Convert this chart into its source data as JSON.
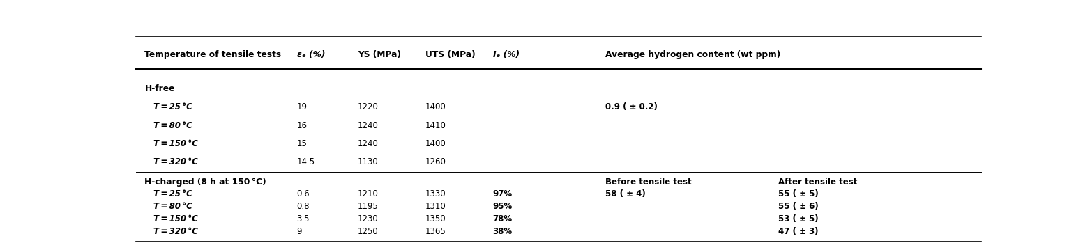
{
  "figsize": [
    15.63,
    3.62
  ],
  "dpi": 100,
  "header": {
    "col1": "Temperature of tensile tests",
    "col2": "εₑ (%)",
    "col3": "YS (MPa)",
    "col4": "UTS (MPa)",
    "col5": "Iₑ (%)",
    "col6": "Average hydrogen content (wt ppm)"
  },
  "section1_label": "H-free",
  "section1_rows": [
    {
      "temp": "T = 25 °C",
      "ef": "19",
      "ys": "1220",
      "uts": "1400",
      "ie": "",
      "h_before": "0.9 ( ± 0.2)",
      "h_after": ""
    },
    {
      "temp": "T = 80 °C",
      "ef": "16",
      "ys": "1240",
      "uts": "1410",
      "ie": "",
      "h_before": "",
      "h_after": ""
    },
    {
      "temp": "T = 150 °C",
      "ef": "15",
      "ys": "1240",
      "uts": "1400",
      "ie": "",
      "h_before": "",
      "h_after": ""
    },
    {
      "temp": "T = 320 °C",
      "ef": "14.5",
      "ys": "1130",
      "uts": "1260",
      "ie": "",
      "h_before": "",
      "h_after": ""
    }
  ],
  "section2_label": "H-charged (8 h at 150 °C)",
  "section2_subheader": {
    "h_before": "Before tensile test",
    "h_after": "After tensile test"
  },
  "section2_rows": [
    {
      "temp": "T = 25 °C",
      "ef": "0.6",
      "ys": "1210",
      "uts": "1330",
      "ie": "97%",
      "h_before": "58 ( ± 4)",
      "h_after": "55 ( ± 5)"
    },
    {
      "temp": "T = 80 °C",
      "ef": "0.8",
      "ys": "1195",
      "uts": "1310",
      "ie": "95%",
      "h_before": "",
      "h_after": "55 ( ± 6)"
    },
    {
      "temp": "T = 150 °C",
      "ef": "3.5",
      "ys": "1230",
      "uts": "1350",
      "ie": "78%",
      "h_before": "",
      "h_after": "53 ( ± 5)"
    },
    {
      "temp": "T = 320 °C",
      "ef": "9",
      "ys": "1250",
      "uts": "1365",
      "ie": "38%",
      "h_before": "",
      "h_after": "47 ( ± 3)"
    }
  ],
  "col_x": {
    "col1": 0.01,
    "col2": 0.19,
    "col3": 0.262,
    "col4": 0.342,
    "col5": 0.422,
    "col6a": 0.555,
    "col6b": 0.76
  },
  "font_size": 8.5,
  "header_font_size": 8.8,
  "line_color": "#000000",
  "bg_color": "#ffffff"
}
